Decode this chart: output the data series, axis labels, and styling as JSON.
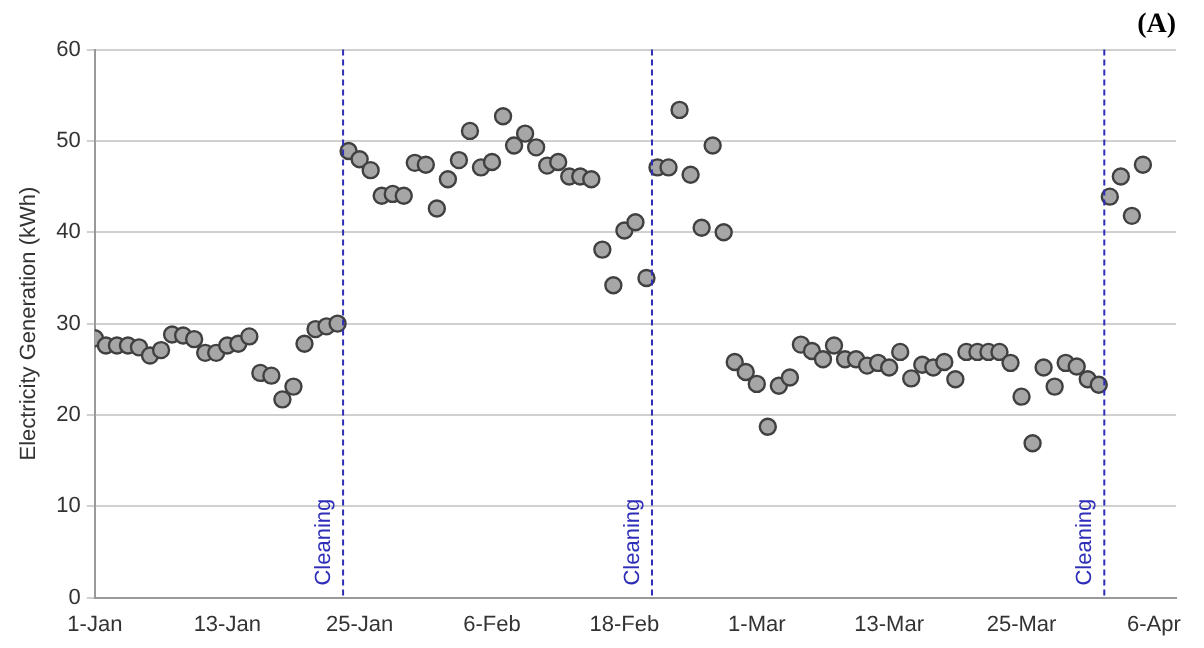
{
  "chart_data": {
    "type": "scatter",
    "title": "(A)",
    "ylabel": "Electricity Generation (kWh)",
    "x": [
      "--01-01",
      "--01-02",
      "--01-03",
      "--01-04",
      "--01-05",
      "--01-06",
      "--01-07",
      "--01-08",
      "--01-09",
      "--01-10",
      "--01-11",
      "--01-12",
      "--01-13",
      "--01-14",
      "--01-15",
      "--01-16",
      "--01-17",
      "--01-18",
      "--01-19",
      "--01-20",
      "--01-21",
      "--01-22",
      "--01-23",
      "--01-24",
      "--01-25",
      "--01-26",
      "--01-27",
      "--01-28",
      "--01-29",
      "--01-30",
      "--01-31",
      "--02-01",
      "--02-02",
      "--02-03",
      "--02-04",
      "--02-05",
      "--02-06",
      "--02-07",
      "--02-08",
      "--02-09",
      "--02-10",
      "--02-11",
      "--02-12",
      "--02-13",
      "--02-14",
      "--02-15",
      "--02-16",
      "--02-17",
      "--02-18",
      "--02-19",
      "--02-20",
      "--02-21",
      "--02-22",
      "--02-23",
      "--02-24",
      "--02-25",
      "--02-26",
      "--02-27",
      "--02-28",
      "--02-29",
      "--03-01",
      "--03-02",
      "--03-03",
      "--03-04",
      "--03-05",
      "--03-06",
      "--03-07",
      "--03-08",
      "--03-09",
      "--03-10",
      "--03-11",
      "--03-12",
      "--03-13",
      "--03-14",
      "--03-15",
      "--03-16",
      "--03-17",
      "--03-18",
      "--03-19",
      "--03-20",
      "--03-21",
      "--03-22",
      "--03-23",
      "--03-24",
      "--03-25",
      "--03-26",
      "--03-27",
      "--03-28",
      "--03-29",
      "--03-30",
      "--03-31",
      "--04-01",
      "--04-02",
      "--04-03",
      "--04-04",
      "--04-05"
    ],
    "series": [
      {
        "color": "#a6a6a6",
        "values": [
          28.4,
          27.6,
          27.6,
          27.6,
          27.4,
          26.5,
          27.1,
          28.8,
          28.7,
          28.3,
          26.8,
          26.8,
          27.6,
          27.8,
          28.6,
          24.6,
          24.3,
          21.7,
          23.1,
          27.8,
          29.4,
          29.7,
          30.0,
          48.9,
          48.0,
          46.8,
          44.0,
          44.2,
          44.0,
          47.6,
          47.4,
          42.6,
          45.8,
          47.9,
          51.1,
          47.1,
          47.7,
          52.7,
          49.5,
          50.8,
          49.3,
          47.3,
          47.7,
          46.1,
          46.1,
          45.8,
          38.1,
          34.2,
          40.2,
          41.1,
          35.0,
          47.1,
          47.1,
          53.4,
          46.3,
          40.5,
          49.5,
          40.0,
          25.8,
          24.7,
          23.4,
          18.7,
          23.2,
          24.1,
          27.7,
          27.0,
          26.1,
          27.6,
          26.1,
          26.1,
          25.4,
          25.7,
          25.2,
          26.9,
          24.0,
          25.5,
          25.2,
          25.8,
          23.9,
          26.9,
          26.9,
          26.9,
          26.9,
          25.7,
          22.0,
          16.9,
          25.2,
          23.1,
          25.7,
          25.3,
          23.9,
          23.3,
          43.9,
          46.1,
          41.8,
          47.4
        ]
      }
    ],
    "xlim": [
      "--01-01",
      "--04-08"
    ],
    "xticks": [
      {
        "value": "--01-01",
        "label": "1-Jan"
      },
      {
        "value": "--01-13",
        "label": "13-Jan"
      },
      {
        "value": "--01-25",
        "label": "25-Jan"
      },
      {
        "value": "--02-06",
        "label": "6-Feb"
      },
      {
        "value": "--02-18",
        "label": "18-Feb"
      },
      {
        "value": "--03-01",
        "label": "1-Mar"
      },
      {
        "value": "--03-13",
        "label": "13-Mar"
      },
      {
        "value": "--03-25",
        "label": "25-Mar"
      },
      {
        "value": "--04-06",
        "label": "6-Apr"
      }
    ],
    "ylim": [
      0,
      60
    ],
    "yticks": [
      0,
      10,
      20,
      30,
      40,
      50,
      60
    ],
    "grid": "y",
    "legend": false,
    "marker": "circle",
    "ref_lines": [
      {
        "axis": "x",
        "value": "--01-23T12:00",
        "label": "Cleaning",
        "color": "#2e2eb8",
        "line_style": "dashed"
      },
      {
        "axis": "x",
        "value": "--02-20T12:00",
        "label": "Cleaning",
        "color": "#2e2eb8",
        "line_style": "dashed"
      },
      {
        "axis": "x",
        "value": "--04-01T12:00",
        "label": "Cleaning",
        "color": "#2e2eb8",
        "line_style": "dashed"
      }
    ]
  }
}
